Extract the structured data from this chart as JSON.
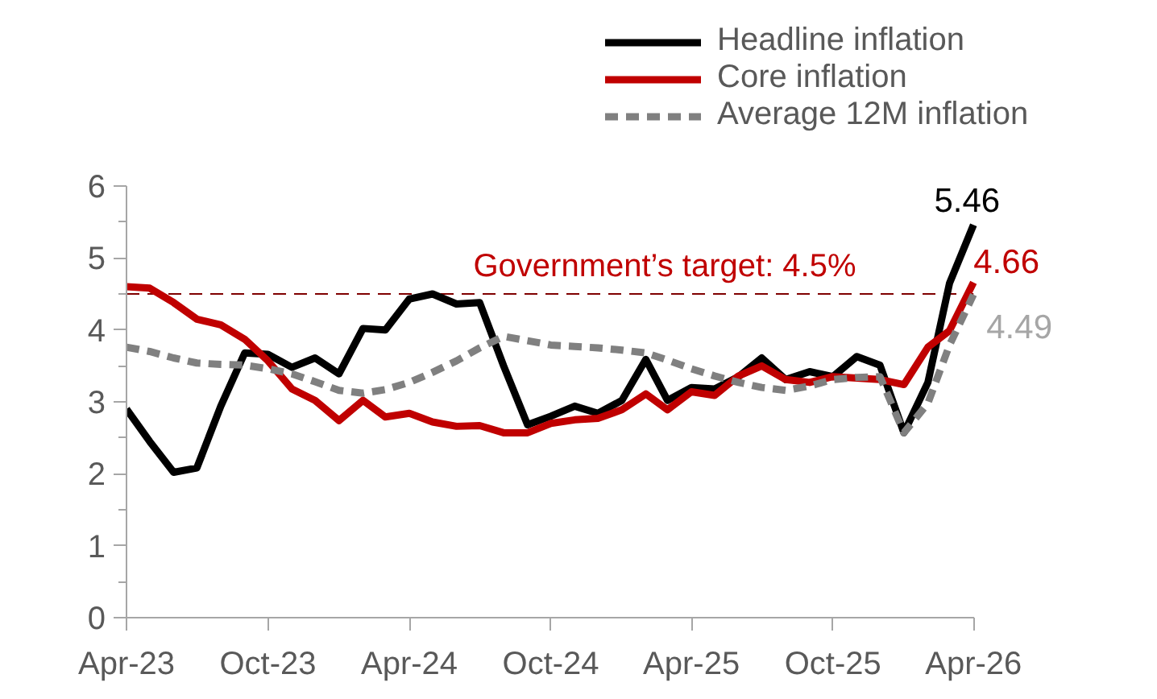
{
  "chart_data": {
    "type": "line",
    "x": [
      "2023-04",
      "2023-05",
      "2023-06",
      "2023-07",
      "2023-08",
      "2023-09",
      "2023-10",
      "2023-11",
      "2023-12",
      "2024-01",
      "2024-02",
      "2024-03",
      "2024-04",
      "2024-05",
      "2024-06",
      "2024-07",
      "2024-08",
      "2024-09",
      "2024-10",
      "2024-11",
      "2024-12",
      "2025-01",
      "2025-02",
      "2025-03",
      "2025-04",
      "2025-05",
      "2025-06",
      "2025-07",
      "2025-08",
      "2025-09",
      "2025-10",
      "2025-11",
      "2025-12",
      "2026-01",
      "2026-02",
      "2026-03",
      "2026-04"
    ],
    "series": [
      {
        "name": "Headline inflation",
        "color": "#000000",
        "line_style": "solid",
        "values": [
          2.9,
          2.45,
          2.02,
          2.08,
          2.94,
          3.68,
          3.66,
          3.48,
          3.61,
          3.39,
          4.02,
          4.0,
          4.43,
          4.5,
          4.36,
          4.38,
          3.5,
          2.68,
          2.8,
          2.94,
          2.84,
          3.02,
          3.59,
          3.02,
          3.2,
          3.18,
          3.35,
          3.61,
          3.31,
          3.42,
          3.35,
          3.63,
          3.51,
          2.57,
          3.27,
          4.65,
          5.46
        ],
        "value_labels": [
          null,
          null,
          null,
          null,
          null,
          null,
          null,
          null,
          null,
          null,
          null,
          null,
          null,
          null,
          null,
          null,
          null,
          null,
          null,
          null,
          null,
          null,
          null,
          null,
          null,
          null,
          null,
          null,
          null,
          null,
          null,
          null,
          null,
          null,
          null,
          null,
          "5.46"
        ]
      },
      {
        "name": "Core inflation",
        "color": "#c00000",
        "line_style": "solid",
        "values": [
          4.6,
          4.58,
          4.38,
          4.15,
          4.07,
          3.87,
          3.57,
          3.18,
          3.02,
          2.74,
          3.02,
          2.79,
          2.84,
          2.72,
          2.66,
          2.67,
          2.57,
          2.57,
          2.7,
          2.75,
          2.77,
          2.89,
          3.11,
          2.89,
          3.14,
          3.09,
          3.36,
          3.5,
          3.31,
          3.27,
          3.35,
          3.33,
          3.31,
          3.24,
          3.76,
          3.99,
          4.66
        ],
        "value_labels": [
          null,
          null,
          null,
          null,
          null,
          null,
          null,
          null,
          null,
          null,
          null,
          null,
          null,
          null,
          null,
          null,
          null,
          null,
          null,
          null,
          null,
          null,
          null,
          null,
          null,
          null,
          null,
          null,
          null,
          null,
          null,
          null,
          null,
          null,
          null,
          null,
          "4.66"
        ]
      },
      {
        "name": "Average 12M inflation",
        "color": "#808080",
        "line_style": "dashed",
        "values": [
          3.76,
          3.7,
          3.61,
          3.54,
          3.52,
          3.51,
          3.46,
          3.39,
          3.28,
          3.16,
          3.12,
          3.17,
          3.27,
          3.41,
          3.57,
          3.75,
          3.91,
          3.85,
          3.79,
          3.77,
          3.75,
          3.72,
          3.68,
          3.58,
          3.46,
          3.36,
          3.27,
          3.2,
          3.16,
          3.22,
          3.31,
          3.34,
          3.35,
          2.57,
          2.98,
          3.79,
          4.49
        ],
        "value_labels": [
          null,
          null,
          null,
          null,
          null,
          null,
          null,
          null,
          null,
          null,
          null,
          null,
          null,
          null,
          null,
          null,
          null,
          null,
          null,
          null,
          null,
          null,
          null,
          null,
          null,
          null,
          null,
          null,
          null,
          null,
          null,
          null,
          null,
          null,
          null,
          null,
          "4.49"
        ]
      }
    ],
    "xlim": [
      "2023-04",
      "2026-04"
    ],
    "xticks": [
      {
        "value": "2023-04",
        "label": "Apr-23"
      },
      {
        "value": "2023-10",
        "label": "Oct-23"
      },
      {
        "value": "2024-04",
        "label": "Apr-24"
      },
      {
        "value": "2024-10",
        "label": "Oct-24"
      },
      {
        "value": "2025-04",
        "label": "Apr-25"
      },
      {
        "value": "2025-10",
        "label": "Oct-25"
      },
      {
        "value": "2026-04",
        "label": "Apr-26"
      }
    ],
    "ylim": [
      0,
      6
    ],
    "yticks": [
      0,
      1,
      2,
      3,
      4,
      5,
      6
    ],
    "ref_lines": [
      {
        "axis": "y",
        "value": 4.5,
        "label": "Government’s target: 4.5%",
        "color": "#7f0000",
        "line_style": "dashed"
      }
    ],
    "grid": false,
    "legend": "top right",
    "marker": "none"
  }
}
